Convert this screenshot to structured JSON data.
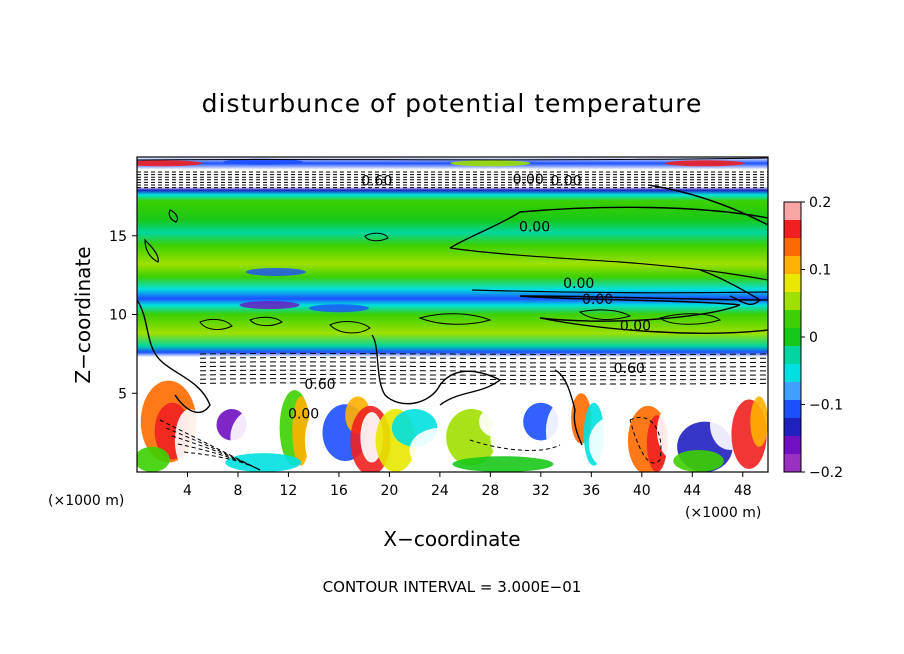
{
  "chart_data": {
    "type": "heatmap",
    "title": "disturbunce of potential temperature",
    "xlabel": "X−coordinate",
    "ylabel": "Z−coordinate",
    "x_unit_left": "(×1000 m)",
    "x_unit_right": "(×1000 m)",
    "xlim": [
      0,
      50
    ],
    "ylim": [
      0,
      20
    ],
    "x_ticks": [
      4,
      8,
      12,
      16,
      20,
      24,
      28,
      32,
      36,
      40,
      44,
      48
    ],
    "x_tick_labels": [
      "4",
      "8",
      "12",
      "16",
      "20",
      "24",
      "28",
      "32",
      "36",
      "40",
      "44",
      "48"
    ],
    "y_ticks": [
      5,
      10,
      15
    ],
    "y_tick_labels": [
      "5",
      "10",
      "15"
    ],
    "colorbar": {
      "range": [
        -0.2,
        0.2
      ],
      "ticks": [
        0.2,
        0.1,
        0,
        -0.1,
        -0.2
      ],
      "tick_labels": [
        "0.2",
        "0.1",
        "0",
        "−0.1",
        "−0.2"
      ],
      "colors": [
        "#f7a5a5",
        "#f02020",
        "#ff6a00",
        "#ffb000",
        "#e8e800",
        "#9ee000",
        "#3cd000",
        "#18c818",
        "#00d6a0",
        "#00e0e0",
        "#40a0ff",
        "#1c50ff",
        "#2020c0",
        "#7010c0",
        "#9a30c0"
      ]
    },
    "contour_labels": [
      {
        "text": "0.60",
        "x": 19.0,
        "y": 18.5
      },
      {
        "text": "0.00",
        "x": 31.0,
        "y": 18.6
      },
      {
        "text": "0.00",
        "x": 34.0,
        "y": 18.5
      },
      {
        "text": "0.00",
        "x": 31.5,
        "y": 15.6
      },
      {
        "text": "0.00",
        "x": 35.0,
        "y": 12.0
      },
      {
        "text": "0.00",
        "x": 36.5,
        "y": 11.0
      },
      {
        "text": "0.00",
        "x": 39.5,
        "y": 9.3
      },
      {
        "text": "0.60",
        "x": 14.5,
        "y": 5.6
      },
      {
        "text": "0.60",
        "x": 39.0,
        "y": 6.6
      },
      {
        "text": "0.00",
        "x": 13.2,
        "y": 3.7
      }
    ],
    "footer": "CONTOUR INTERVAL = 3.000E−01"
  }
}
